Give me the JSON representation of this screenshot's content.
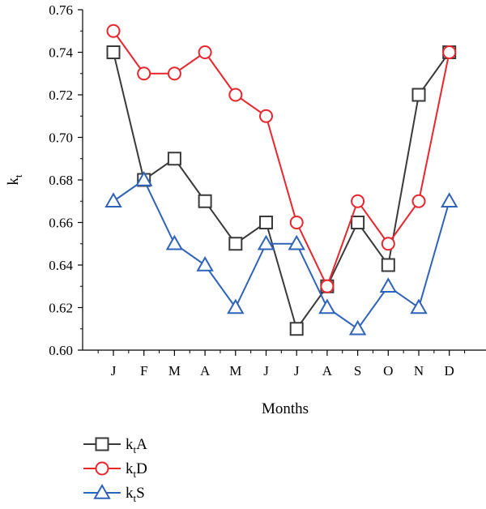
{
  "chart_data": {
    "type": "line",
    "xlabel": "Months",
    "ylabel": {
      "main": "k",
      "sub": "t"
    },
    "categories": [
      "J",
      "F",
      "M",
      "A",
      "M",
      "J",
      "J",
      "A",
      "S",
      "O",
      "N",
      "D"
    ],
    "ylim": [
      0.6,
      0.76
    ],
    "yticks": [
      "0.60",
      "0.62",
      "0.64",
      "0.66",
      "0.68",
      "0.70",
      "0.72",
      "0.74",
      "0.76"
    ],
    "grid": false,
    "legend_position": "bottom-left",
    "series": [
      {
        "name": "ktA",
        "label_main": "k",
        "label_sub": "t",
        "label_suffix": "A",
        "marker": "square",
        "color": "#3a3a3a",
        "values": [
          0.74,
          0.68,
          0.69,
          0.67,
          0.65,
          0.66,
          0.61,
          0.63,
          0.66,
          0.64,
          0.72,
          0.74
        ]
      },
      {
        "name": "ktD",
        "label_main": "k",
        "label_sub": "t",
        "label_suffix": "D",
        "marker": "circle",
        "color": "#e8262d",
        "values": [
          0.75,
          0.73,
          0.73,
          0.74,
          0.72,
          0.71,
          0.66,
          0.63,
          0.67,
          0.65,
          0.67,
          0.74
        ]
      },
      {
        "name": "ktS",
        "label_main": "k",
        "label_sub": "t",
        "label_suffix": "S",
        "marker": "triangle",
        "color": "#2f63b8",
        "values": [
          0.67,
          0.68,
          0.65,
          0.64,
          0.62,
          0.65,
          0.65,
          0.62,
          0.61,
          0.63,
          0.62,
          0.67
        ]
      }
    ]
  }
}
